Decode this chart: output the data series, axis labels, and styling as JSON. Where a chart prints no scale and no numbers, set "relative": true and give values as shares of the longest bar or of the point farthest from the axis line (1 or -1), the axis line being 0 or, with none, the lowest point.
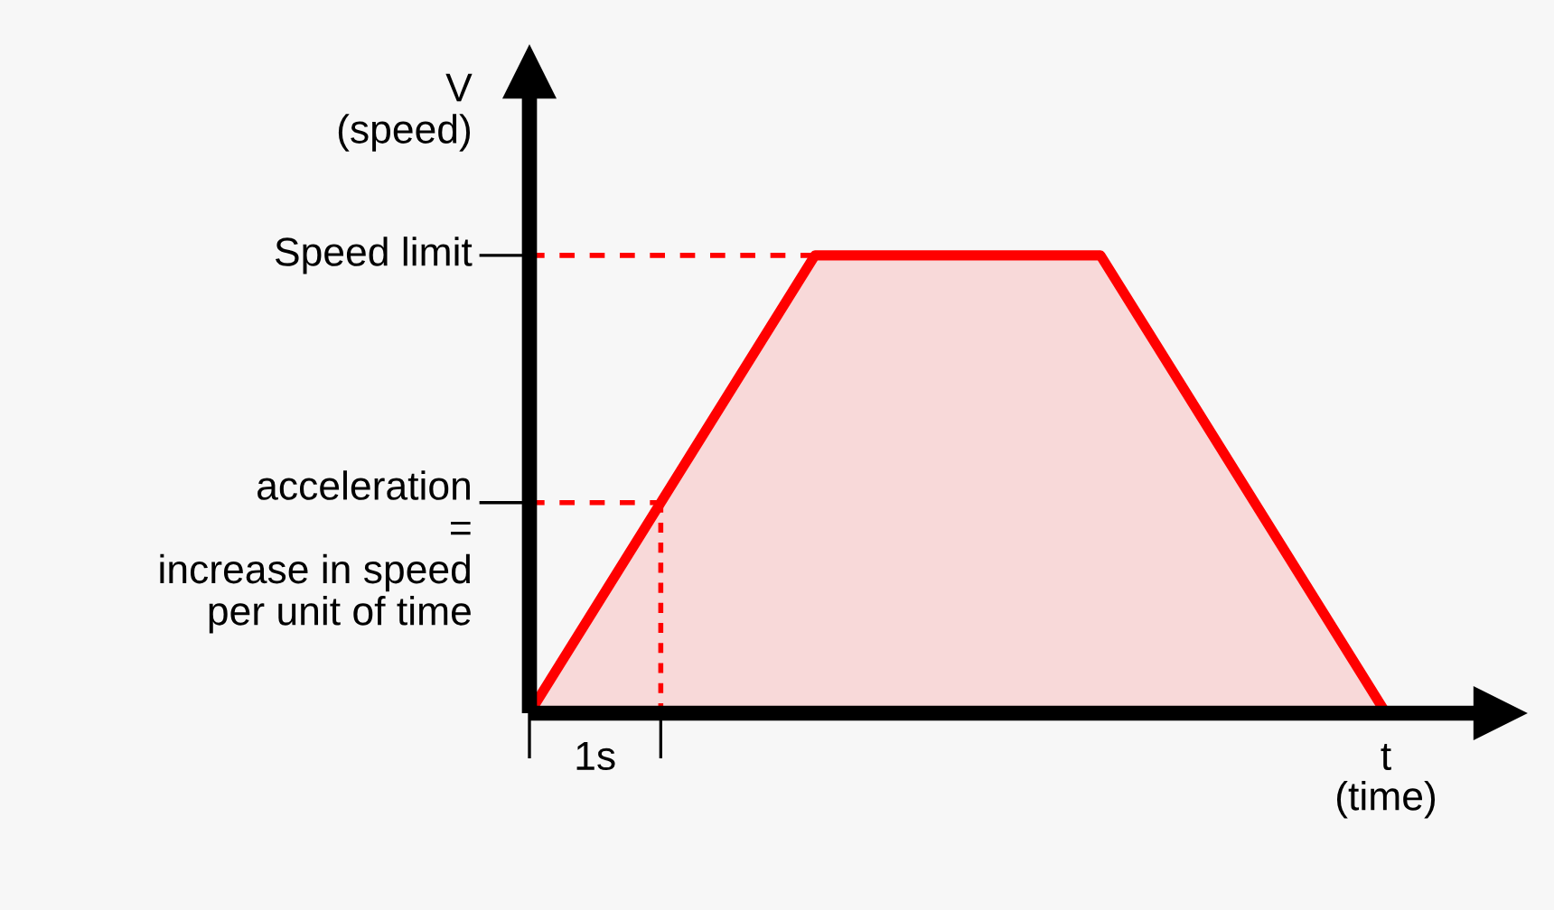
{
  "chart_data": {
    "type": "area",
    "relative": true,
    "xlabel": "t\n(time)",
    "ylabel": "V\n(speed)",
    "categories": [
      null,
      null,
      null,
      null
    ],
    "series": [
      {
        "color": "#ff0000",
        "values": [
          0,
          1,
          1,
          0
        ]
      }
    ],
    "grid": false,
    "legend": false,
    "line_style": "solid",
    "marker": "none",
    "ref_lines": [
      {
        "axis": "y",
        "value": 1,
        "label": "Speed limit",
        "color": "#ff0000",
        "line_style": "dashed"
      },
      {
        "axis": "y",
        "value": 0.46,
        "label": "acceleration\n=\nincrease in speed\nper unit of time",
        "color": "#ff0000",
        "line_style": "dashed"
      }
    ],
    "annotations": [
      "1s"
    ]
  }
}
